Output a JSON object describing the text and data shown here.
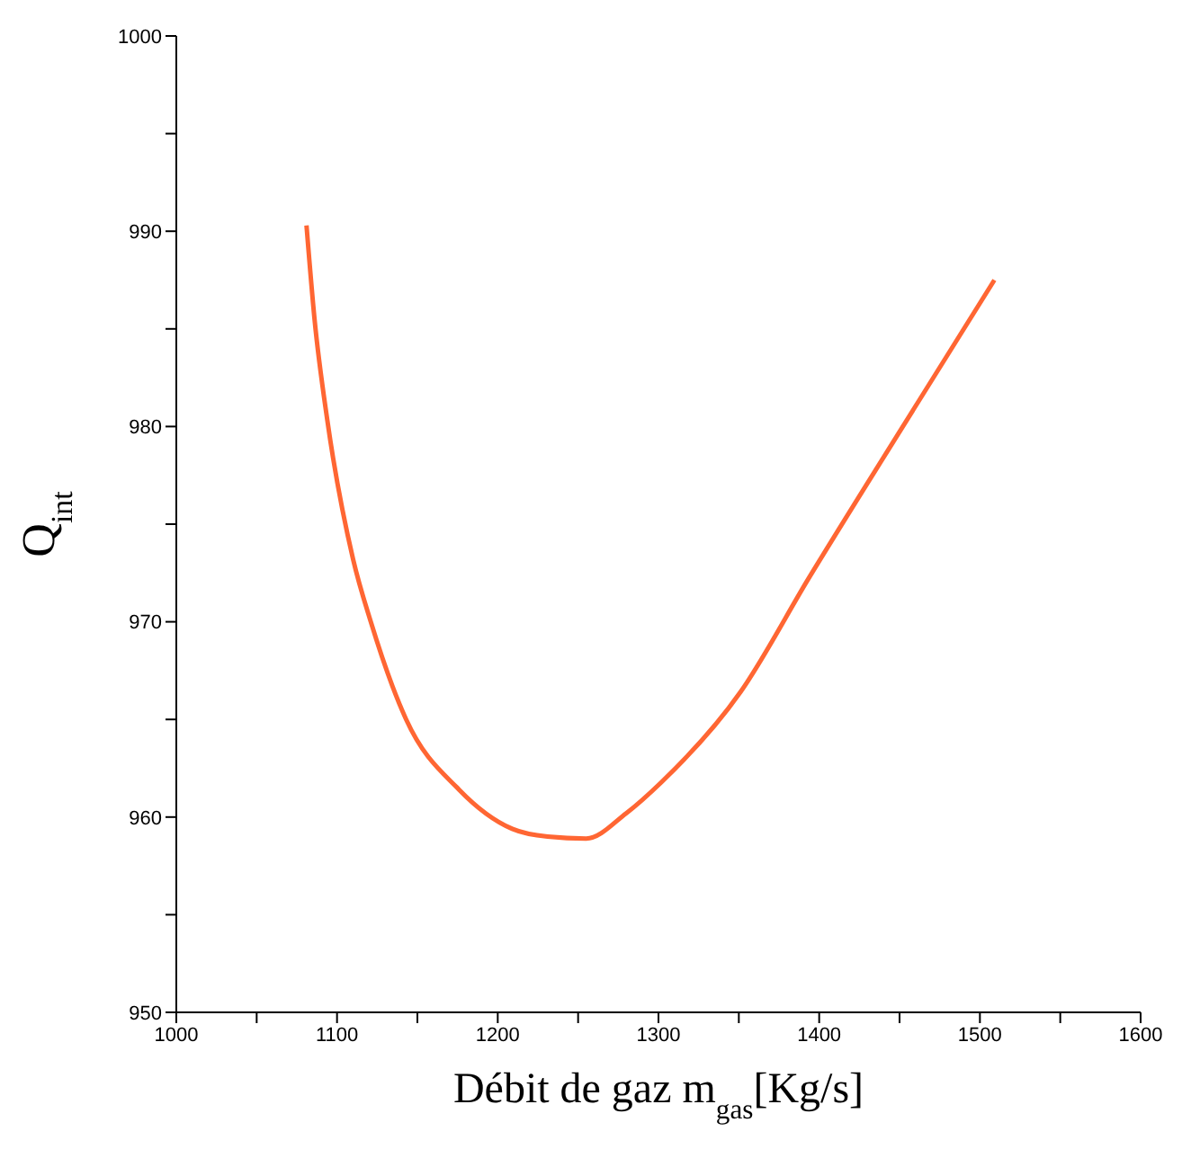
{
  "chart_data": {
    "type": "line",
    "xlabel": "Débit de gaz m$_{gas}$[Kg/s]",
    "ylabel": "Q$_{int}$",
    "x": [
      1081,
      1086,
      1094,
      1110,
      1121,
      1143,
      1176,
      1209,
      1231,
      1255,
      1280,
      1302,
      1351,
      1394,
      1449,
      1509
    ],
    "series": [
      {
        "color": "#ff6633",
        "values": [
          990.3,
          985.5,
          980.3,
          973.2,
          970.0,
          965.0,
          961.4,
          959.4,
          959.0,
          958.9,
          960.2,
          961.8,
          966.4,
          972.3,
          979.6,
          987.5
        ]
      }
    ],
    "xlim": [
      1000,
      1600
    ],
    "ylim": [
      950,
      1000
    ],
    "xticks": [
      1000,
      {
        "value": 1050,
        "label": null
      },
      1100,
      {
        "value": 1150,
        "label": null
      },
      1200,
      {
        "value": 1250,
        "label": null
      },
      1300,
      {
        "value": 1350,
        "label": null
      },
      1400,
      {
        "value": 1450,
        "label": null
      },
      1500,
      {
        "value": 1550,
        "label": null
      },
      1600
    ],
    "yticks": [
      950,
      {
        "value": 955,
        "label": null
      },
      960,
      {
        "value": 965,
        "label": null
      },
      970,
      {
        "value": 975,
        "label": null
      },
      980,
      {
        "value": 985,
        "label": null
      },
      990,
      {
        "value": 995,
        "label": null
      },
      1000
    ],
    "grid": false,
    "legend": false,
    "marker": "none",
    "line_style": "solid"
  }
}
